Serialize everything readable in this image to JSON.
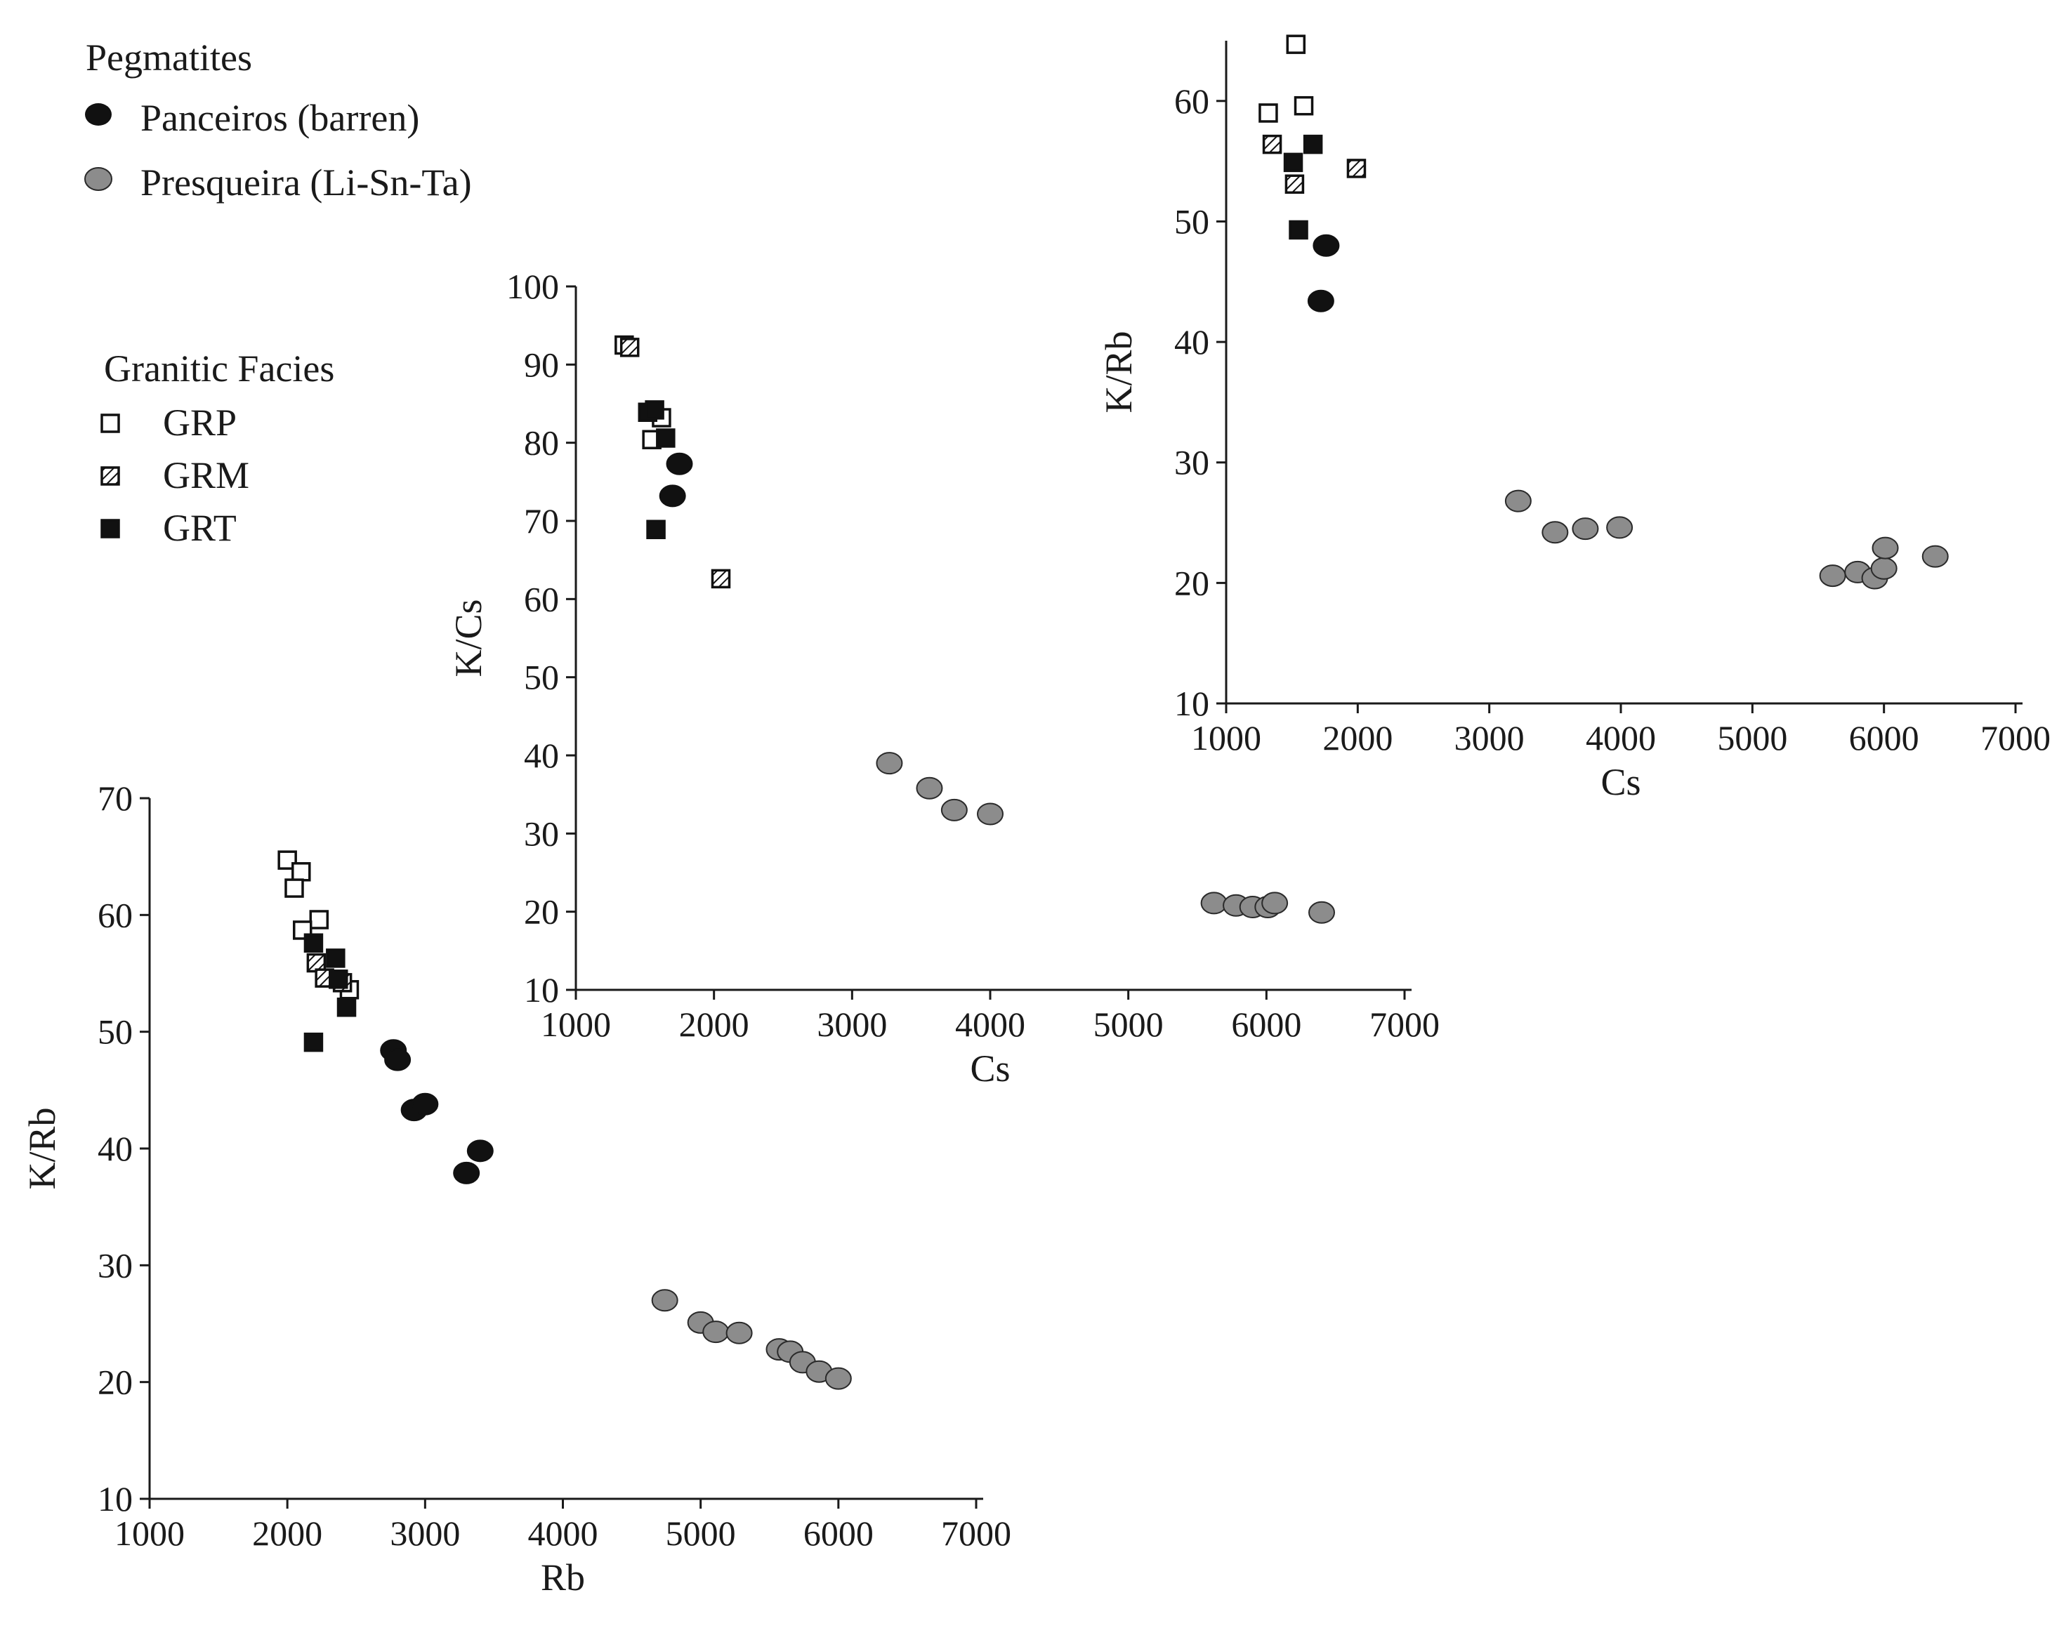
{
  "legend": {
    "pegmatites_title": "Pegmatites",
    "pegmatites": [
      {
        "label": "Panceiros (barren)",
        "marker": "black-circle"
      },
      {
        "label": "Presqueira (Li-Sn-Ta)",
        "marker": "gray-circle"
      }
    ],
    "granitic_title": "Granitic Facies",
    "granitic": [
      {
        "label": "GRP",
        "marker": "open-square"
      },
      {
        "label": "GRM",
        "marker": "hatched-square"
      },
      {
        "label": "GRT",
        "marker": "filled-square"
      }
    ]
  },
  "colors": {
    "black_fill": "#111111",
    "gray_fill": "#8c8c8c",
    "gray_stroke": "#2a2a2a",
    "axis": "#1a1a1a"
  },
  "chart_data": [
    {
      "id": "krb_vs_cs",
      "type": "scatter",
      "title": "",
      "xlabel": "Cs",
      "ylabel": "K/Rb",
      "xlim": [
        1000,
        7000
      ],
      "ylim": [
        10,
        65
      ],
      "xticks": [
        1000,
        2000,
        3000,
        4000,
        5000,
        6000,
        7000
      ],
      "yticks": [
        10,
        20,
        30,
        40,
        50,
        60
      ],
      "series": [
        {
          "name": "GRP",
          "marker": "open-square",
          "points": [
            [
              1530,
              64.7
            ],
            [
              1320,
              59.0
            ],
            [
              1590,
              59.6
            ]
          ]
        },
        {
          "name": "GRM",
          "marker": "hatched-square",
          "points": [
            [
              1350,
              56.4
            ],
            [
              1520,
              53.1
            ],
            [
              1990,
              54.4
            ]
          ]
        },
        {
          "name": "GRT",
          "marker": "filled-square",
          "points": [
            [
              1510,
              54.9
            ],
            [
              1660,
              56.4
            ],
            [
              1550,
              49.3
            ]
          ]
        },
        {
          "name": "Panceiros (barren)",
          "marker": "black-circle",
          "points": [
            [
              1760,
              48.0
            ],
            [
              1720,
              43.4
            ]
          ]
        },
        {
          "name": "Presqueira (Li-Sn-Ta)",
          "marker": "gray-circle",
          "points": [
            [
              3220,
              26.8
            ],
            [
              3500,
              24.2
            ],
            [
              3730,
              24.5
            ],
            [
              3990,
              24.6
            ],
            [
              5610,
              20.6
            ],
            [
              5800,
              20.9
            ],
            [
              5930,
              20.4
            ],
            [
              6000,
              21.2
            ],
            [
              6010,
              22.9
            ],
            [
              6390,
              22.2
            ]
          ]
        }
      ]
    },
    {
      "id": "kcs_vs_cs",
      "type": "scatter",
      "title": "",
      "xlabel": "Cs",
      "ylabel": "K/Cs",
      "xlim": [
        1000,
        7000
      ],
      "ylim": [
        10,
        100
      ],
      "xticks": [
        1000,
        2000,
        3000,
        4000,
        5000,
        6000,
        7000
      ],
      "yticks": [
        10,
        20,
        30,
        40,
        50,
        60,
        70,
        80,
        90,
        100
      ],
      "series": [
        {
          "name": "GRP",
          "marker": "open-square",
          "points": [
            [
              1350,
              92.5
            ],
            [
              1620,
              83.2
            ],
            [
              1550,
              80.4
            ]
          ]
        },
        {
          "name": "GRM",
          "marker": "hatched-square",
          "points": [
            [
              1390,
              92.2
            ],
            [
              2050,
              62.6
            ]
          ]
        },
        {
          "name": "GRT",
          "marker": "filled-square",
          "points": [
            [
              1520,
              83.9
            ],
            [
              1570,
              84.2
            ],
            [
              1650,
              80.6
            ],
            [
              1580,
              68.9
            ]
          ]
        },
        {
          "name": "Panceiros (barren)",
          "marker": "black-circle",
          "points": [
            [
              1750,
              77.3
            ],
            [
              1700,
              73.2
            ]
          ]
        },
        {
          "name": "Presqueira (Li-Sn-Ta)",
          "marker": "gray-circle",
          "points": [
            [
              3270,
              39.0
            ],
            [
              3560,
              35.8
            ],
            [
              3740,
              33.0
            ],
            [
              4000,
              32.5
            ],
            [
              5620,
              21.1
            ],
            [
              5780,
              20.8
            ],
            [
              5900,
              20.6
            ],
            [
              6010,
              20.6
            ],
            [
              6060,
              21.1
            ],
            [
              6400,
              19.9
            ]
          ]
        }
      ]
    },
    {
      "id": "krb_vs_rb",
      "type": "scatter",
      "title": "",
      "xlabel": "Rb",
      "ylabel": "K/Rb",
      "xlim": [
        1000,
        7000
      ],
      "ylim": [
        10,
        70
      ],
      "xticks": [
        1000,
        2000,
        3000,
        4000,
        5000,
        6000,
        7000
      ],
      "yticks": [
        10,
        20,
        30,
        40,
        50,
        60,
        70
      ],
      "series": [
        {
          "name": "GRP",
          "marker": "open-square",
          "points": [
            [
              2000,
              64.7
            ],
            [
              2100,
              63.7
            ],
            [
              2050,
              62.3
            ],
            [
              2230,
              59.6
            ],
            [
              2110,
              58.7
            ],
            [
              2450,
              53.6
            ]
          ]
        },
        {
          "name": "GRM",
          "marker": "hatched-square",
          "points": [
            [
              2210,
              55.9
            ],
            [
              2270,
              54.6
            ],
            [
              2400,
              54.2
            ]
          ]
        },
        {
          "name": "GRT",
          "marker": "filled-square",
          "points": [
            [
              2190,
              57.6
            ],
            [
              2350,
              56.3
            ],
            [
              2370,
              54.5
            ],
            [
              2430,
              52.1
            ],
            [
              2190,
              49.1
            ]
          ]
        },
        {
          "name": "Panceiros (barren)",
          "marker": "black-circle",
          "points": [
            [
              2770,
              48.4
            ],
            [
              2800,
              47.6
            ],
            [
              2920,
              43.3
            ],
            [
              3000,
              43.8
            ],
            [
              3400,
              39.8
            ],
            [
              3300,
              37.9
            ]
          ]
        },
        {
          "name": "Presqueira (Li-Sn-Ta)",
          "marker": "gray-circle",
          "points": [
            [
              4740,
              27.0
            ],
            [
              5000,
              25.1
            ],
            [
              5110,
              24.3
            ],
            [
              5280,
              24.2
            ],
            [
              5570,
              22.8
            ],
            [
              5650,
              22.6
            ],
            [
              5740,
              21.7
            ],
            [
              5860,
              20.9
            ],
            [
              6000,
              20.3
            ]
          ]
        }
      ]
    }
  ]
}
